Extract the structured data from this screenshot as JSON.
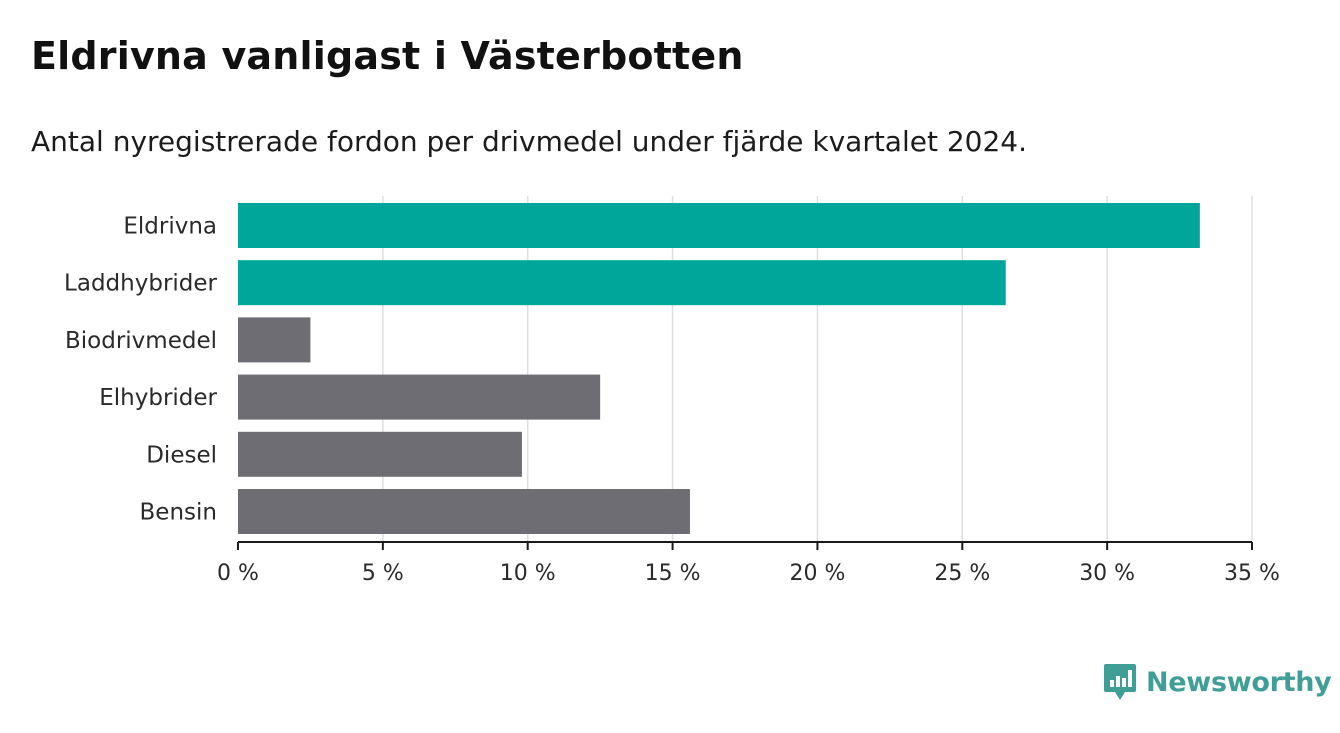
{
  "title": "Eldrivna vanligast i Västerbotten",
  "subtitle": "Antal nyregistrerade fordon per drivmedel under fjärde kvartalet 2024.",
  "brand": {
    "name": "Newsworthy",
    "icon": "bar-chart-speech-bubble-icon",
    "color": "#3f9f97"
  },
  "chart_data": {
    "type": "bar",
    "orientation": "horizontal",
    "categories": [
      "Eldrivna",
      "Laddhybrider",
      "Biodrivmedel",
      "Elhybrider",
      "Diesel",
      "Bensin"
    ],
    "values": [
      33.2,
      26.5,
      2.5,
      12.5,
      9.8,
      15.6
    ],
    "colors": [
      "#00a699",
      "#00a699",
      "#6e6d73",
      "#6e6d73",
      "#6e6d73",
      "#6e6d73"
    ],
    "xlim": [
      0,
      35
    ],
    "xticks": [
      0,
      5,
      10,
      15,
      20,
      25,
      30,
      35
    ],
    "xtick_labels": [
      "0 %",
      "5 %",
      "10 %",
      "15 %",
      "20 %",
      "25 %",
      "30 %",
      "35 %"
    ],
    "grid": "vertical",
    "xlabel": "",
    "ylabel": ""
  }
}
